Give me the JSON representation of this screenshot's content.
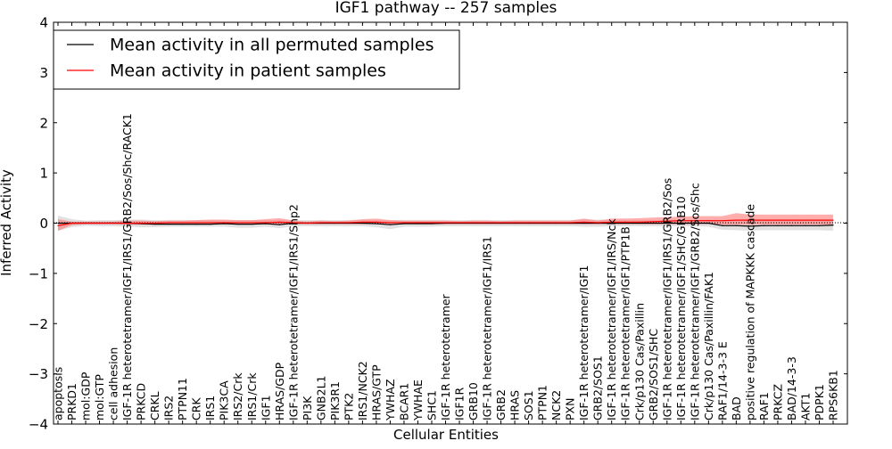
{
  "chart_data": {
    "type": "line",
    "title": "IGF1 pathway -- 257 samples",
    "xlabel": "Cellular Entities",
    "ylabel": "Inferred Activity",
    "ylim": [
      -4,
      4
    ],
    "yticks": [
      -4,
      -3,
      -2,
      -1,
      0,
      1,
      2,
      3,
      4
    ],
    "ytick_labels": [
      "−4",
      "−3",
      "−2",
      "−1",
      "0",
      "1",
      "2",
      "3",
      "4"
    ],
    "legend_position": "top-left",
    "colors": {
      "permuted": "#000000",
      "patient": "#ff0000",
      "permuted_band": "#c8c8c8",
      "patient_band": "#ff6a6a"
    },
    "categories": [
      "apoptosis",
      "PRKD1",
      "mol:GDP",
      "mol:GTP",
      "cell adhesion",
      "IGF-1R heterotetramer/IGF1/IRS1/GRB2/Sos/Shc/RACK1",
      "PRKCD",
      "CRKL",
      "IRS2",
      "PTPN11",
      "CRK",
      "IRS1",
      "PIK3CA",
      "IRS2/Crk",
      "IRS1/Crk",
      "IGF1",
      "HRAS/GDP",
      "IGF-1R heterotetramer/IGF1/IRS1/Shp2",
      "PI3K",
      "GNB2L1",
      "PIK3R1",
      "PTK2",
      "IRS1/NCK2",
      "HRAS/GTP",
      "YWHAZ",
      "BCAR1",
      "YWHAE",
      "SHC1",
      "IGF-1R heterotetramer",
      "IGF1R",
      "GRB10",
      "IGF-1R heterotetramer/IGF1/IRS1",
      "GRB2",
      "HRAS",
      "SOS1",
      "PTPN1",
      "NCK2",
      "PXN",
      "IGF-1R heterotetramer/IGF1",
      "GRB2/SOS1",
      "IGF-1R heterotetramer/IGF1/IRS/Nck",
      "IGF-1R heterotetramer/IGF1/PTP1B",
      "Crk/p130 Cas/Paxillin",
      "GRB2/SOS1/SHC",
      "IGF-1R heterotetramer/IGF1/IRS1/GRB2/Sos",
      "IGF-1R heterotetramer/IGF1/SHC/GRB10",
      "IGF-1R heterotetramer/IGF1/GRB2/Sos/Shc",
      "Crk/p130 Cas/Paxillin/FAK1",
      "RAF1/14-3-3 E",
      "BAD",
      "positive regulation of MAPKKK cascade",
      "RAF1",
      "PRKCZ",
      "BAD/14-3-3",
      "AKT1",
      "PDPK1",
      "RPS6KB1"
    ],
    "series": [
      {
        "name": "Mean activity in all permuted samples",
        "color": "#000000",
        "values": [
          0.0,
          0.0,
          0.0,
          0.0,
          0.0,
          0.0,
          -0.01,
          -0.02,
          -0.02,
          -0.02,
          -0.02,
          -0.02,
          -0.01,
          -0.02,
          -0.02,
          -0.01,
          -0.03,
          0.0,
          0.0,
          0.0,
          0.0,
          0.0,
          0.0,
          -0.01,
          -0.03,
          -0.01,
          -0.01,
          -0.01,
          0.0,
          0.0,
          0.0,
          0.0,
          0.0,
          0.0,
          0.0,
          0.0,
          0.0,
          0.0,
          0.0,
          0.0,
          0.0,
          0.0,
          0.0,
          0.0,
          0.0,
          0.0,
          0.0,
          0.0,
          -0.05,
          -0.05,
          -0.06,
          -0.05,
          -0.05,
          -0.05,
          -0.05,
          -0.05,
          -0.04
        ],
        "lower": [
          -0.15,
          -0.08,
          -0.05,
          -0.06,
          -0.06,
          -0.07,
          -0.08,
          -0.08,
          -0.07,
          -0.07,
          -0.07,
          -0.07,
          -0.07,
          -0.09,
          -0.09,
          -0.07,
          -0.1,
          -0.06,
          -0.06,
          -0.06,
          -0.06,
          -0.06,
          -0.06,
          -0.08,
          -0.12,
          -0.07,
          -0.07,
          -0.07,
          -0.06,
          -0.06,
          -0.06,
          -0.06,
          -0.06,
          -0.06,
          -0.06,
          -0.06,
          -0.06,
          -0.06,
          -0.07,
          -0.07,
          -0.06,
          -0.06,
          -0.06,
          -0.06,
          -0.06,
          -0.06,
          -0.06,
          -0.07,
          -0.13,
          -0.14,
          -0.15,
          -0.14,
          -0.14,
          -0.14,
          -0.14,
          -0.14,
          -0.15
        ],
        "upper": [
          0.15,
          0.08,
          0.05,
          0.06,
          0.06,
          0.07,
          0.07,
          0.06,
          0.06,
          0.06,
          0.06,
          0.06,
          0.06,
          0.06,
          0.06,
          0.06,
          0.06,
          0.06,
          0.06,
          0.06,
          0.06,
          0.06,
          0.06,
          0.06,
          0.06,
          0.06,
          0.06,
          0.06,
          0.06,
          0.06,
          0.06,
          0.06,
          0.06,
          0.06,
          0.06,
          0.06,
          0.06,
          0.06,
          0.07,
          0.07,
          0.06,
          0.06,
          0.06,
          0.06,
          0.06,
          0.06,
          0.06,
          0.07,
          0.04,
          0.04,
          0.04,
          0.04,
          0.04,
          0.04,
          0.04,
          0.04,
          0.05
        ]
      },
      {
        "name": "Mean activity in patient samples",
        "color": "#ff0000",
        "values": [
          -0.05,
          0.0,
          0.0,
          0.0,
          0.0,
          0.0,
          0.0,
          0.0,
          0.01,
          0.01,
          0.01,
          0.01,
          0.01,
          0.01,
          0.01,
          0.01,
          0.02,
          0.01,
          0.0,
          0.01,
          0.01,
          0.01,
          0.02,
          0.02,
          0.01,
          0.01,
          0.01,
          0.01,
          0.01,
          0.01,
          0.01,
          0.01,
          0.01,
          0.01,
          0.01,
          0.01,
          0.01,
          0.01,
          0.02,
          0.01,
          0.02,
          0.02,
          0.02,
          0.03,
          0.04,
          0.05,
          0.05,
          0.05,
          0.05,
          0.06,
          0.06,
          0.06,
          0.06,
          0.06,
          0.06,
          0.06,
          0.06
        ],
        "lower": [
          -0.15,
          -0.04,
          -0.02,
          -0.02,
          -0.02,
          -0.03,
          -0.03,
          -0.03,
          -0.02,
          -0.02,
          -0.02,
          -0.02,
          -0.02,
          -0.02,
          -0.02,
          -0.02,
          -0.02,
          -0.02,
          -0.02,
          -0.02,
          -0.02,
          -0.02,
          -0.02,
          -0.02,
          -0.02,
          -0.02,
          -0.02,
          -0.02,
          -0.02,
          -0.02,
          -0.02,
          -0.02,
          -0.02,
          -0.02,
          -0.02,
          -0.02,
          -0.02,
          -0.02,
          -0.02,
          -0.02,
          -0.02,
          -0.02,
          -0.02,
          -0.02,
          -0.02,
          -0.02,
          -0.02,
          -0.02,
          -0.03,
          -0.03,
          -0.03,
          -0.03,
          -0.03,
          -0.03,
          -0.03,
          -0.03,
          -0.03
        ],
        "upper": [
          0.08,
          0.03,
          0.03,
          0.03,
          0.03,
          0.05,
          0.05,
          0.04,
          0.05,
          0.05,
          0.06,
          0.07,
          0.07,
          0.06,
          0.06,
          0.08,
          0.1,
          0.05,
          0.03,
          0.05,
          0.04,
          0.05,
          0.08,
          0.09,
          0.06,
          0.05,
          0.05,
          0.05,
          0.05,
          0.04,
          0.05,
          0.05,
          0.04,
          0.05,
          0.05,
          0.05,
          0.05,
          0.05,
          0.09,
          0.05,
          0.09,
          0.09,
          0.1,
          0.11,
          0.12,
          0.13,
          0.14,
          0.14,
          0.14,
          0.2,
          0.17,
          0.17,
          0.17,
          0.17,
          0.17,
          0.17,
          0.17
        ]
      }
    ]
  }
}
